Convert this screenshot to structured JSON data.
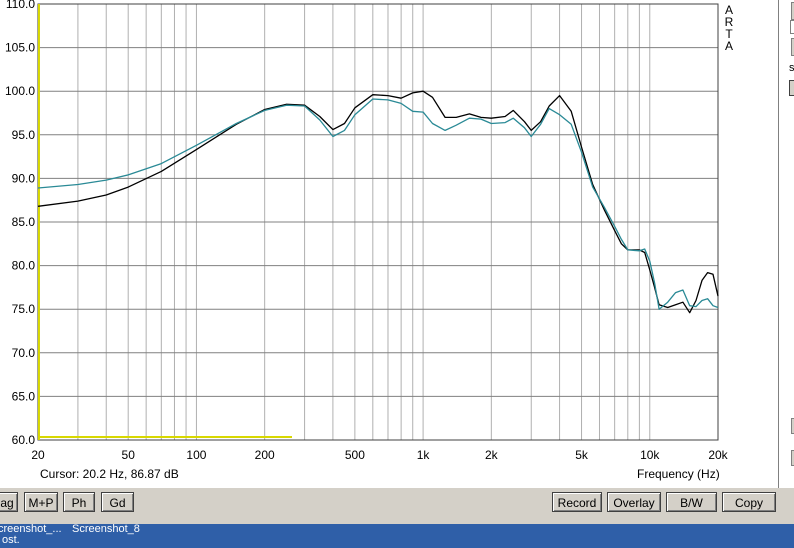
{
  "plot": {
    "y_tick_labels": [
      "110.0",
      "105.0",
      "100.0",
      "95.0",
      "90.0",
      "85.0",
      "80.0",
      "75.0",
      "70.0",
      "65.0",
      "60.0"
    ],
    "x_tick_labels": [
      {
        "f": 20,
        "label": "20"
      },
      {
        "f": 50,
        "label": "50"
      },
      {
        "f": 100,
        "label": "100"
      },
      {
        "f": 200,
        "label": "200"
      },
      {
        "f": 500,
        "label": "500"
      },
      {
        "f": 1000,
        "label": "1k"
      },
      {
        "f": 2000,
        "label": "2k"
      },
      {
        "f": 5000,
        "label": "5k"
      },
      {
        "f": 10000,
        "label": "10k"
      },
      {
        "f": 20000,
        "label": "20k"
      }
    ],
    "cursor_text": "Cursor: 20.2 Hz, 86.87 dB",
    "x_axis_label": "Frequency (Hz)",
    "logo": "ARTA"
  },
  "chart_data": {
    "type": "line",
    "xscale": "log",
    "xlim": [
      20,
      20000
    ],
    "ylim": [
      60,
      110
    ],
    "grid": true,
    "x_tick_labels": [
      "20",
      "50",
      "100",
      "200",
      "500",
      "1k",
      "2k",
      "5k",
      "10k",
      "20k"
    ],
    "y_tick_labels": [
      "110.0",
      "105.0",
      "100.0",
      "95.0",
      "90.0",
      "85.0",
      "80.0",
      "75.0",
      "70.0",
      "65.0",
      "60.0"
    ],
    "xlabel": "Frequency (Hz)",
    "ylabel": "",
    "series": [
      {
        "color": "#000000",
        "points": [
          [
            20,
            86.8
          ],
          [
            30,
            87.4
          ],
          [
            40,
            88.1
          ],
          [
            50,
            89.0
          ],
          [
            70,
            90.8
          ],
          [
            100,
            93.3
          ],
          [
            150,
            96.2
          ],
          [
            200,
            97.9
          ],
          [
            250,
            98.5
          ],
          [
            300,
            98.4
          ],
          [
            350,
            97.1
          ],
          [
            400,
            95.6
          ],
          [
            450,
            96.3
          ],
          [
            500,
            98.1
          ],
          [
            600,
            99.6
          ],
          [
            700,
            99.5
          ],
          [
            800,
            99.2
          ],
          [
            900,
            99.8
          ],
          [
            1000,
            100.0
          ],
          [
            1100,
            99.3
          ],
          [
            1250,
            97.0
          ],
          [
            1400,
            97.0
          ],
          [
            1600,
            97.4
          ],
          [
            1800,
            97.0
          ],
          [
            2000,
            96.9
          ],
          [
            2300,
            97.1
          ],
          [
            2500,
            97.8
          ],
          [
            2800,
            96.5
          ],
          [
            3000,
            95.5
          ],
          [
            3300,
            96.5
          ],
          [
            3600,
            98.3
          ],
          [
            4000,
            99.5
          ],
          [
            4500,
            97.7
          ],
          [
            5000,
            93.6
          ],
          [
            5600,
            89.3
          ],
          [
            6300,
            86.4
          ],
          [
            7000,
            84.0
          ],
          [
            7500,
            82.5
          ],
          [
            8000,
            81.8
          ],
          [
            9000,
            81.8
          ],
          [
            9500,
            81.5
          ],
          [
            10000,
            79.5
          ],
          [
            10500,
            77.5
          ],
          [
            11000,
            75.5
          ],
          [
            12000,
            75.2
          ],
          [
            13000,
            75.5
          ],
          [
            14000,
            75.8
          ],
          [
            15000,
            74.6
          ],
          [
            16000,
            76.0
          ],
          [
            17000,
            78.3
          ],
          [
            18000,
            79.2
          ],
          [
            19000,
            79.0
          ],
          [
            20000,
            76.5
          ]
        ]
      },
      {
        "color": "#2a8a96",
        "points": [
          [
            20,
            88.9
          ],
          [
            30,
            89.3
          ],
          [
            40,
            89.8
          ],
          [
            50,
            90.4
          ],
          [
            70,
            91.7
          ],
          [
            100,
            93.8
          ],
          [
            150,
            96.3
          ],
          [
            200,
            97.8
          ],
          [
            250,
            98.4
          ],
          [
            300,
            98.3
          ],
          [
            350,
            96.7
          ],
          [
            400,
            94.8
          ],
          [
            450,
            95.5
          ],
          [
            500,
            97.3
          ],
          [
            600,
            99.1
          ],
          [
            700,
            99.0
          ],
          [
            800,
            98.6
          ],
          [
            900,
            97.7
          ],
          [
            1000,
            97.6
          ],
          [
            1100,
            96.3
          ],
          [
            1250,
            95.5
          ],
          [
            1400,
            96.1
          ],
          [
            1600,
            96.9
          ],
          [
            1800,
            96.8
          ],
          [
            2000,
            96.3
          ],
          [
            2300,
            96.4
          ],
          [
            2500,
            96.9
          ],
          [
            2800,
            95.8
          ],
          [
            3000,
            94.8
          ],
          [
            3300,
            96.2
          ],
          [
            3600,
            98.0
          ],
          [
            4000,
            97.3
          ],
          [
            4500,
            96.2
          ],
          [
            5000,
            93.0
          ],
          [
            5600,
            89.0
          ],
          [
            6300,
            86.7
          ],
          [
            7000,
            84.5
          ],
          [
            7500,
            83.0
          ],
          [
            8000,
            81.8
          ],
          [
            9000,
            81.7
          ],
          [
            9500,
            81.9
          ],
          [
            10000,
            80.5
          ],
          [
            10500,
            78.0
          ],
          [
            11000,
            75.0
          ],
          [
            12000,
            75.8
          ],
          [
            13000,
            76.9
          ],
          [
            14000,
            77.2
          ],
          [
            15000,
            75.4
          ],
          [
            16000,
            75.3
          ],
          [
            17000,
            76.0
          ],
          [
            18000,
            76.2
          ],
          [
            19000,
            75.4
          ],
          [
            20000,
            75.2
          ]
        ]
      }
    ]
  },
  "toolbar": {
    "left_buttons": [
      "ag",
      "M+P",
      "Ph",
      "Gd"
    ],
    "right_buttons": [
      "Record",
      "Overlay",
      "B/W",
      "Copy"
    ]
  },
  "right_panel": {
    "letters": "se"
  },
  "taskbar": {
    "items": [
      "creenshot_...",
      "Screenshot_8"
    ],
    "subtext": "ost."
  }
}
